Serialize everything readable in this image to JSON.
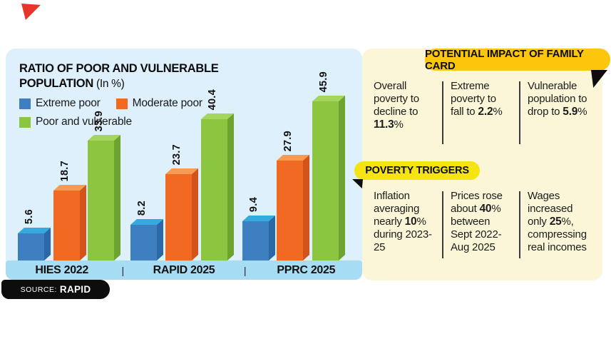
{
  "marker": {
    "color": "#e8352b"
  },
  "chart_panel": {
    "bg": "#def0fb",
    "axis_strip_bg": "#a7dcf5",
    "title_line1": "RATIO OF POOR AND VULNERABLE",
    "title_line2_bold": "POPULATION",
    "title_suffix": " (In %)",
    "legend": [
      {
        "label": "Extreme poor",
        "color": "#3e7fc1"
      },
      {
        "label": "Moderate poor",
        "color": "#f26a21"
      },
      {
        "label": "Poor and vulnerable",
        "color": "#8cc640"
      }
    ],
    "separator": "|",
    "source": {
      "label": "SOURCE:",
      "value": "RAPID"
    }
  },
  "chart_data": {
    "type": "bar",
    "title": "RATIO OF POOR AND VULNERABLE POPULATION (In %)",
    "unit": "%",
    "categories": [
      "HIES 2022",
      "RAPID 2025",
      "PPRC 2025"
    ],
    "series": [
      {
        "name": "Extreme poor",
        "color": "#3e7fc1",
        "color_top": "#35aadf",
        "color_side": "#2d68a6",
        "values": [
          5.6,
          8.2,
          9.4
        ]
      },
      {
        "name": "Moderate poor",
        "color": "#f26a21",
        "color_top": "#f79a52",
        "color_side": "#d3541a",
        "values": [
          18.7,
          23.7,
          27.9
        ]
      },
      {
        "name": "Poor and vulnerable",
        "color": "#8cc640",
        "color_top": "#a6d55e",
        "color_side": "#6da32f",
        "values": [
          33.9,
          40.4,
          45.9
        ]
      }
    ],
    "ylim": [
      0,
      50
    ],
    "grid": false,
    "legend_position": "top-left",
    "value_labels": "rotated 90 degrees above bars"
  },
  "impact_panel": {
    "bg": "#fbf6d8",
    "header": "POTENTIAL IMPACT OF FAMILY CARD",
    "header_bg": "#fcc60d",
    "items": [
      {
        "before": "Overall poverty to decline to ",
        "bold": "11.3",
        "after": "%"
      },
      {
        "before": "Extreme poverty to fall to ",
        "bold": "2.2",
        "after": "%"
      },
      {
        "before": "Vulnerable population to drop to ",
        "bold": "5.9",
        "after": "%"
      }
    ]
  },
  "triggers_panel": {
    "header": "POVERTY TRIGGERS",
    "header_bg": "#f5e412",
    "items": [
      {
        "before": "Inflation averaging nearly ",
        "bold": "10",
        "after": "% during 2023-25"
      },
      {
        "before": "Prices rose about ",
        "bold": "40",
        "after": "% between Sept 2022- Aug 2025"
      },
      {
        "before": "Wages increased only ",
        "bold": "25",
        "after": "%, compressing real incomes"
      }
    ]
  }
}
